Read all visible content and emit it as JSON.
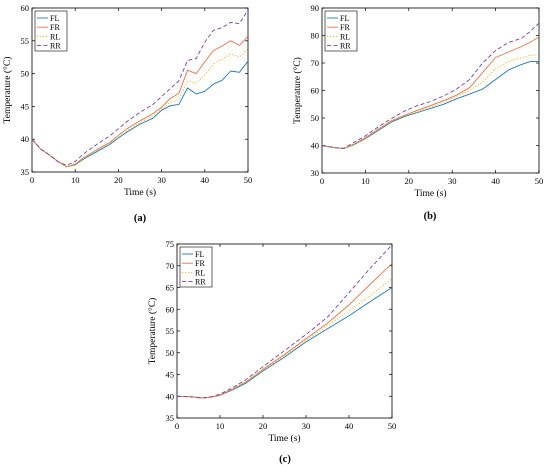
{
  "chart_data": [
    {
      "type": "line",
      "caption": "(a)",
      "xlabel": "Time (s)",
      "ylabel": "Temperature (°C)",
      "xlim": [
        0,
        50
      ],
      "ylim": [
        35,
        60
      ],
      "xticks": [
        0,
        10,
        20,
        30,
        40,
        50
      ],
      "yticks": [
        35,
        40,
        45,
        50,
        55,
        60
      ],
      "grid": false,
      "legend": "top-left",
      "series": [
        {
          "name": "FL",
          "style": "solid",
          "color": "#1f77b4",
          "x": [
            0,
            2,
            4,
            6,
            8,
            10,
            12,
            15,
            18,
            20,
            22,
            25,
            28,
            30,
            32,
            34,
            36,
            38,
            40,
            42,
            44,
            46,
            48,
            50
          ],
          "values": [
            40,
            38.5,
            37.6,
            36.6,
            35.8,
            36.1,
            37.0,
            38.1,
            39.2,
            40.2,
            41.1,
            42.3,
            43.2,
            44.4,
            45.1,
            45.3,
            47.8,
            46.9,
            47.3,
            48.4,
            49.0,
            50.4,
            50.2,
            51.9
          ]
        },
        {
          "name": "FR",
          "style": "solid",
          "color": "#e8734a",
          "x": [
            0,
            2,
            4,
            6,
            8,
            10,
            12,
            15,
            18,
            20,
            22,
            25,
            28,
            30,
            32,
            34,
            36,
            38,
            40,
            42,
            44,
            46,
            48,
            50
          ],
          "values": [
            40,
            38.5,
            37.6,
            36.6,
            35.8,
            36.2,
            37.2,
            38.4,
            39.5,
            40.6,
            41.6,
            42.8,
            43.9,
            44.9,
            46.2,
            47.0,
            50.5,
            50.0,
            51.8,
            53.5,
            54.2,
            55.0,
            54.3,
            55.7
          ]
        },
        {
          "name": "RL",
          "style": "dotted",
          "color": "#e6b422",
          "x": [
            0,
            2,
            4,
            6,
            8,
            10,
            12,
            15,
            18,
            20,
            22,
            25,
            28,
            30,
            32,
            34,
            36,
            38,
            40,
            42,
            44,
            46,
            48,
            50
          ],
          "values": [
            40,
            38.5,
            37.6,
            36.6,
            35.8,
            36.1,
            37.1,
            38.3,
            39.4,
            40.3,
            41.3,
            42.5,
            43.6,
            44.6,
            45.6,
            46.1,
            48.8,
            48.6,
            49.8,
            51.5,
            52.2,
            53.0,
            52.5,
            53.8
          ]
        },
        {
          "name": "RR",
          "style": "dashed",
          "color": "#7d3f98",
          "x": [
            0,
            2,
            4,
            6,
            8,
            10,
            12,
            15,
            18,
            20,
            22,
            25,
            28,
            30,
            32,
            34,
            36,
            38,
            40,
            42,
            44,
            46,
            48,
            50
          ],
          "values": [
            40,
            38.5,
            37.6,
            36.6,
            36.0,
            36.6,
            37.8,
            39.2,
            40.5,
            41.6,
            42.7,
            44.1,
            45.3,
            46.5,
            47.7,
            48.9,
            52.0,
            52.3,
            54.8,
            56.6,
            57.0,
            57.8,
            57.6,
            59.7
          ]
        }
      ]
    },
    {
      "type": "line",
      "caption": "(b)",
      "xlabel": "Time (s)",
      "ylabel": "Temperature (°C)",
      "xlim": [
        0,
        50
      ],
      "ylim": [
        30,
        90
      ],
      "xticks": [
        0,
        10,
        20,
        30,
        40,
        50
      ],
      "yticks": [
        30,
        40,
        50,
        60,
        70,
        80,
        90
      ],
      "grid": false,
      "legend": "top-left",
      "series": [
        {
          "name": "FL",
          "style": "solid",
          "color": "#1f77b4",
          "x": [
            0,
            3,
            5,
            7,
            10,
            13,
            16,
            19,
            22,
            25,
            28,
            31,
            34,
            37,
            40,
            43,
            46,
            48,
            50
          ],
          "values": [
            40,
            39.2,
            38.9,
            40.0,
            42.5,
            45.5,
            48.5,
            50.5,
            52.0,
            53.5,
            55.0,
            57.0,
            58.7,
            60.5,
            64.0,
            67.5,
            69.5,
            70.5,
            70.5
          ]
        },
        {
          "name": "FR",
          "style": "solid",
          "color": "#e8734a",
          "x": [
            0,
            3,
            5,
            7,
            10,
            13,
            16,
            19,
            22,
            25,
            28,
            31,
            34,
            37,
            40,
            43,
            46,
            48,
            50
          ],
          "values": [
            40,
            39.2,
            38.9,
            40.2,
            42.8,
            46.0,
            49.0,
            51.0,
            52.8,
            54.5,
            56.3,
            58.3,
            61.0,
            66.5,
            72.0,
            74.0,
            76.0,
            77.5,
            79.5
          ]
        },
        {
          "name": "RL",
          "style": "dotted",
          "color": "#e6b422",
          "x": [
            0,
            3,
            5,
            7,
            10,
            13,
            16,
            19,
            22,
            25,
            28,
            31,
            34,
            37,
            40,
            43,
            46,
            48,
            50
          ],
          "values": [
            40,
            39.2,
            38.9,
            40.1,
            42.6,
            45.8,
            48.8,
            50.8,
            52.4,
            54.0,
            55.8,
            57.8,
            60.0,
            63.0,
            68.0,
            70.5,
            72.0,
            72.8,
            73.0
          ]
        },
        {
          "name": "RR",
          "style": "dashed",
          "color": "#7d3f98",
          "x": [
            0,
            3,
            5,
            7,
            10,
            13,
            16,
            19,
            22,
            25,
            28,
            31,
            34,
            37,
            40,
            43,
            46,
            48,
            50
          ],
          "values": [
            40,
            39.2,
            39.0,
            40.8,
            43.5,
            46.8,
            49.8,
            52.5,
            54.5,
            56.0,
            58.0,
            60.5,
            64.0,
            70.0,
            74.5,
            77.5,
            79.0,
            81.5,
            84.5
          ]
        }
      ]
    },
    {
      "type": "line",
      "caption": "(c)",
      "xlabel": "Time (s)",
      "ylabel": "Temperature (°C)",
      "xlim": [
        0,
        50
      ],
      "ylim": [
        35,
        75
      ],
      "xticks": [
        0,
        10,
        20,
        30,
        40,
        50
      ],
      "yticks": [
        35,
        40,
        45,
        50,
        55,
        60,
        65,
        70,
        75
      ],
      "grid": false,
      "legend": "top-left",
      "series": [
        {
          "name": "FL",
          "style": "solid",
          "color": "#1f77b4",
          "x": [
            0,
            3,
            6,
            8,
            10,
            13,
            16,
            20,
            25,
            30,
            35,
            40,
            45,
            50
          ],
          "values": [
            40,
            39.9,
            39.6,
            39.8,
            40.2,
            41.5,
            43.0,
            45.8,
            49.0,
            52.5,
            55.5,
            58.5,
            61.8,
            65.0
          ]
        },
        {
          "name": "FR",
          "style": "solid",
          "color": "#e8734a",
          "x": [
            0,
            3,
            6,
            8,
            10,
            13,
            16,
            20,
            25,
            30,
            35,
            40,
            45,
            50
          ],
          "values": [
            40,
            39.9,
            39.6,
            39.8,
            40.3,
            41.7,
            43.3,
            46.2,
            49.6,
            53.2,
            56.8,
            61.0,
            65.8,
            70.5
          ]
        },
        {
          "name": "RL",
          "style": "dotted",
          "color": "#e6b422",
          "x": [
            0,
            3,
            6,
            8,
            10,
            13,
            16,
            20,
            25,
            30,
            35,
            40,
            45,
            50
          ],
          "values": [
            40,
            39.9,
            39.6,
            39.8,
            40.2,
            41.6,
            43.2,
            46.0,
            49.3,
            52.9,
            56.2,
            59.6,
            63.2,
            67.0
          ]
        },
        {
          "name": "RR",
          "style": "dashed",
          "color": "#7d3f98",
          "x": [
            0,
            3,
            6,
            8,
            10,
            13,
            16,
            20,
            25,
            30,
            35,
            40,
            45,
            50
          ],
          "values": [
            40,
            39.9,
            39.6,
            39.9,
            40.5,
            42.0,
            43.8,
            46.8,
            50.5,
            54.2,
            58.2,
            63.8,
            69.5,
            74.8
          ]
        }
      ]
    }
  ]
}
